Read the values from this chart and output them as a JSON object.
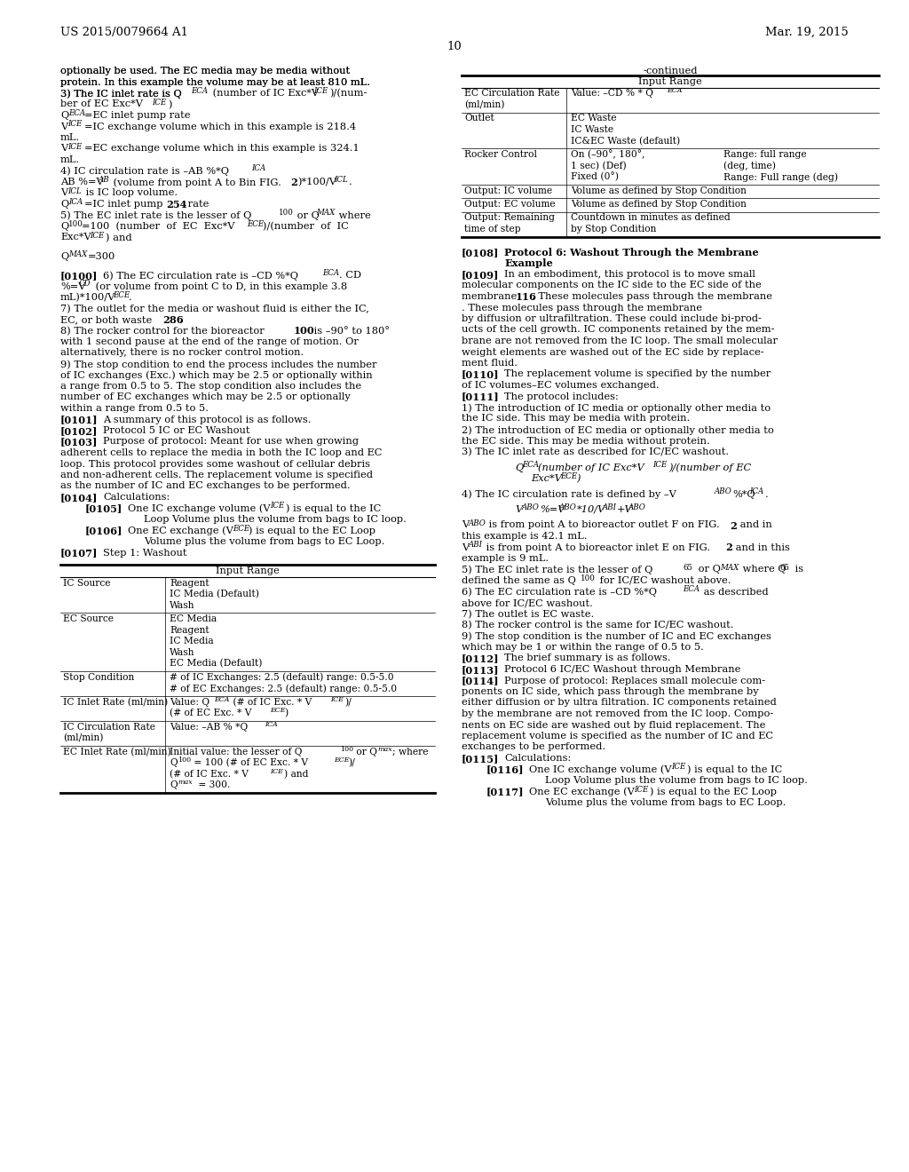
{
  "page_number": "10",
  "patent_number": "US 2015/0079664 A1",
  "patent_date": "Mar. 19, 2015",
  "background_color": "#ffffff"
}
